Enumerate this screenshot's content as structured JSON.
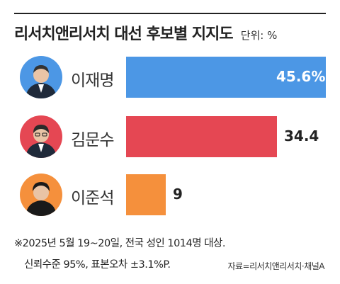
{
  "header": {
    "title": "리서치앤리서치 대선 후보별 지지도",
    "unit": "단위: %"
  },
  "colors": {
    "blue": "#4c97e5",
    "red": "#e54753",
    "orange": "#f5903c"
  },
  "chart_data": {
    "type": "bar",
    "orientation": "horizontal",
    "title": "리서치앤리서치 대선 후보별 지지도",
    "unit": "단위: %",
    "categories": [
      "이재명",
      "김문수",
      "이준석"
    ],
    "values": [
      45.6,
      34.4,
      9
    ],
    "value_labels": [
      "45.6%",
      "34.4",
      "9"
    ],
    "bar_colors": [
      "#4c97e5",
      "#e54753",
      "#f5903c"
    ],
    "xlim": [
      0,
      45.6
    ],
    "grid": false,
    "legend": "none"
  },
  "footnote": {
    "line1": "※2025년 5월 19~20일, 전국 성인 1014명 대상.",
    "line2": "신뢰수준 95%, 표본오차 ±3.1%P.",
    "source": "자료=리서치앤리서치·채널A"
  }
}
